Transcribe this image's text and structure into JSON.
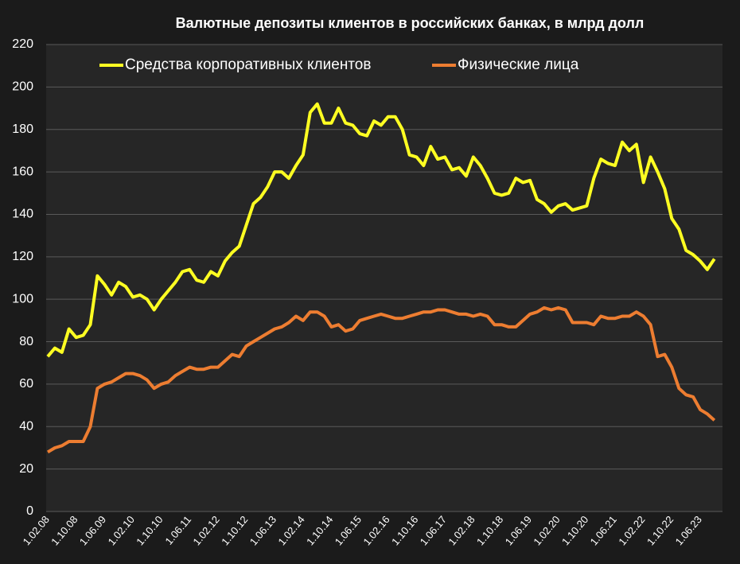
{
  "chart_data": {
    "type": "line",
    "title": "Валютные депозиты клиентов в российских банках, в млрд долл",
    "categories": [
      "1.02.08",
      null,
      null,
      null,
      "1.10.08",
      null,
      null,
      null,
      "1.06.09",
      null,
      null,
      null,
      "1.02.10",
      null,
      null,
      null,
      "1.10.10",
      null,
      null,
      null,
      "1.06.11",
      null,
      null,
      null,
      "1.02.12",
      null,
      null,
      null,
      "1.10.12",
      null,
      null,
      null,
      "1.06.13",
      null,
      null,
      null,
      "1.02.14",
      null,
      null,
      null,
      "1.10.14",
      null,
      null,
      null,
      "1.06.15",
      null,
      null,
      null,
      "1.02.16",
      null,
      null,
      null,
      "1.10.16",
      null,
      null,
      null,
      "1.06.17",
      null,
      null,
      null,
      "1.02.18",
      null,
      null,
      null,
      "1.10.18",
      null,
      null,
      null,
      "1.06.19",
      null,
      null,
      null,
      "1.02.20",
      null,
      null,
      null,
      "1.10.20",
      null,
      null,
      null,
      "1.06.21",
      null,
      null,
      null,
      "1.02.22",
      null,
      null,
      null,
      "1.10.22",
      null,
      null,
      null,
      "1.06.23",
      null,
      null
    ],
    "series": [
      {
        "name": "Средства корпоративных клиентов",
        "color": "#ffff22",
        "values": [
          73,
          77,
          75,
          86,
          82,
          83,
          88,
          111,
          107,
          102,
          108,
          106,
          101,
          102,
          100,
          95,
          100,
          104,
          108,
          113,
          114,
          109,
          108,
          113,
          111,
          118,
          122,
          125,
          135,
          145,
          148,
          153,
          160,
          160,
          157,
          163,
          168,
          188,
          192,
          183,
          183,
          190,
          183,
          182,
          178,
          177,
          184,
          182,
          186,
          186,
          180,
          168,
          167,
          163,
          172,
          166,
          167,
          161,
          162,
          158,
          167,
          163,
          157,
          150,
          149,
          150,
          157,
          155,
          156,
          147,
          145,
          141,
          144,
          145,
          142,
          143,
          144,
          157,
          166,
          164,
          163,
          174,
          170,
          173,
          155,
          167,
          160,
          152,
          138,
          133,
          123,
          121,
          118,
          114,
          119
        ]
      },
      {
        "name": "Физические лица",
        "color": "#ed7d31",
        "values": [
          28,
          30,
          31,
          33,
          33,
          33,
          40,
          58,
          60,
          61,
          63,
          65,
          65,
          64,
          62,
          58,
          60,
          61,
          64,
          66,
          68,
          67,
          67,
          68,
          68,
          71,
          74,
          73,
          78,
          80,
          82,
          84,
          86,
          87,
          89,
          92,
          90,
          94,
          94,
          92,
          87,
          88,
          85,
          86,
          90,
          91,
          92,
          93,
          92,
          91,
          91,
          92,
          93,
          94,
          94,
          95,
          95,
          94,
          93,
          93,
          92,
          93,
          92,
          88,
          88,
          87,
          87,
          90,
          93,
          94,
          96,
          95,
          96,
          95,
          89,
          89,
          89,
          88,
          92,
          91,
          91,
          92,
          92,
          94,
          92,
          88,
          73,
          74,
          68,
          58,
          55,
          54,
          48,
          46,
          43
        ]
      }
    ],
    "ylim": [
      0,
      220
    ],
    "yticks": [
      0,
      20,
      40,
      60,
      80,
      100,
      120,
      140,
      160,
      180,
      200,
      220
    ],
    "grid": true,
    "legend": "top"
  }
}
